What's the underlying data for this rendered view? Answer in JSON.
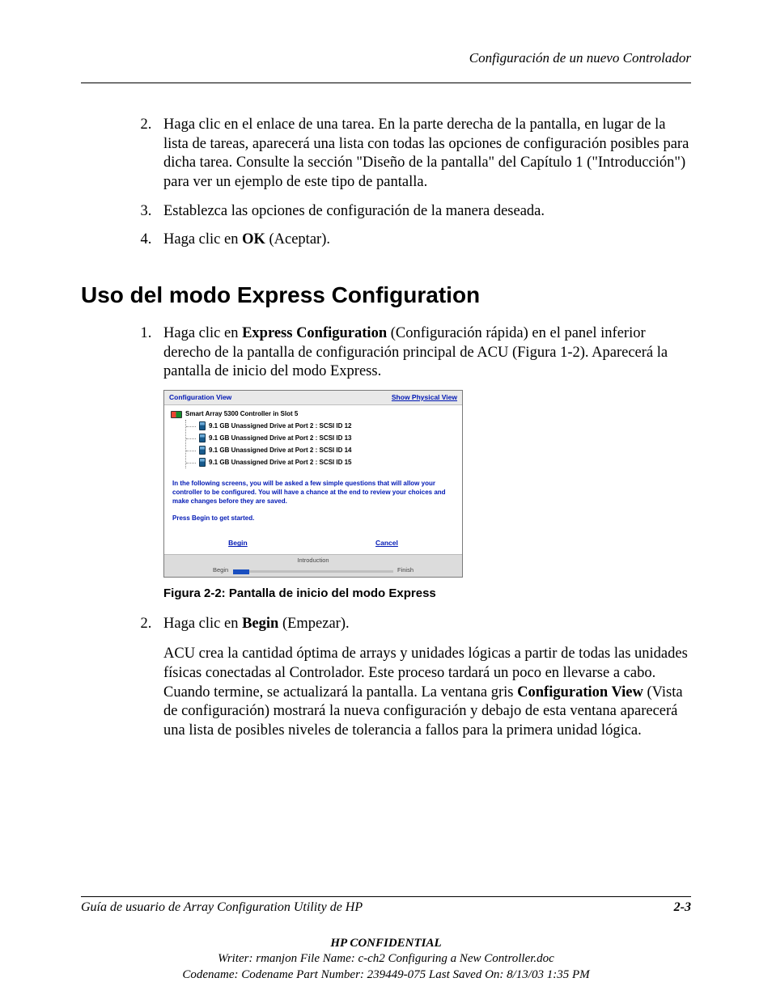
{
  "header": {
    "section_title": "Configuración de un nuevo Controlador"
  },
  "steps1": {
    "item2": "Haga clic en el enlace de una tarea. En la parte derecha de la pantalla, en lugar de la lista de tareas, aparecerá una lista con todas las opciones de configuración posibles para dicha tarea. Consulte la sección \"Diseño de la pantalla\" del Capítulo 1 (\"Introducción\") para ver un ejemplo de este tipo de pantalla.",
    "item3": "Establezca las opciones de configuración de la manera deseada.",
    "item4_a": "Haga clic en ",
    "item4_b": "OK",
    "item4_c": " (Aceptar)."
  },
  "h2": "Uso del modo Express Configuration",
  "steps2": {
    "item1_a": "Haga clic en ",
    "item1_b": "Express Configuration",
    "item1_c": " (Configuración rápida) en el panel inferior derecho de la pantalla de configuración principal de ACU (Figura 1-2). Aparecerá la pantalla de inicio del modo Express.",
    "fig_caption": "Figura 2-2:  Pantalla de inicio del modo Express",
    "item2_a": "Haga clic en ",
    "item2_b": "Begin",
    "item2_c": " (Empezar).",
    "item2_blk_a": "ACU crea la cantidad óptima de arrays y unidades lógicas a partir de todas las unidades físicas conectadas al Controlador. Este proceso tardará un poco en llevarse a cabo. Cuando termine, se actualizará la pantalla. La ventana gris ",
    "item2_blk_b": "Configuration View",
    "item2_blk_c": " (Vista de configuración) mostrará la nueva configuración y debajo de esta ventana aparecerá una lista de posibles niveles de tolerancia a fallos para la primera unidad lógica."
  },
  "screenshot": {
    "titlebar_left": "Configuration View",
    "titlebar_right": "Show Physical View",
    "controller": "Smart Array 5300 Controller in Slot 5",
    "drives": [
      "9.1 GB Unassigned Drive at Port 2 : SCSI ID 12",
      "9.1 GB Unassigned Drive at Port 2 : SCSI ID 13",
      "9.1 GB Unassigned Drive at Port 2 : SCSI ID 14",
      "9.1 GB Unassigned Drive at Port 2 : SCSI ID 15"
    ],
    "body1": "In the following screens, you will be asked a few simple questions that will allow your controller to be configured. You will have a chance at the end to review your choices and make changes before they are saved.",
    "body2": "Press Begin to get started.",
    "link_begin": "Begin",
    "link_cancel": "Cancel",
    "progress_label": "Introduction",
    "progress_begin": "Begin",
    "progress_finish": "Finish",
    "colors": {
      "link": "#0018b4",
      "titlebar_bg": "#e9e9e9",
      "progress_bg": "#dcdcdc",
      "progress_fill": "#1a4fc0"
    }
  },
  "footer": {
    "guide": "Guía de usuario de Array Configuration Utility de HP",
    "page": "2-3"
  },
  "confidential": {
    "title": "HP CONFIDENTIAL",
    "line1": "Writer: rmanjon File Name: c-ch2 Configuring a New Controller.doc",
    "line2": "Codename: Codename Part Number: 239449-075 Last Saved On: 8/13/03 1:35 PM"
  }
}
